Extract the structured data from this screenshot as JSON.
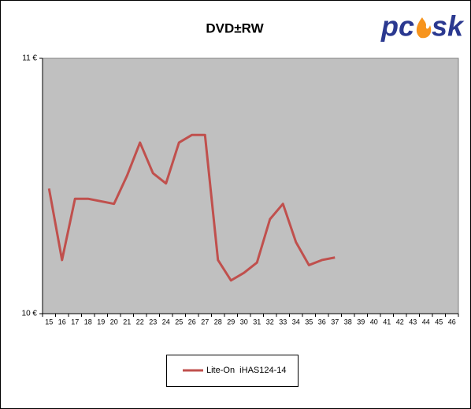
{
  "chart_data": {
    "type": "line",
    "title": "DVD±RW",
    "logo": [
      "pc",
      "sk"
    ],
    "categories": [
      "15",
      "16",
      "17",
      "18",
      "19",
      "20",
      "21",
      "22",
      "23",
      "24",
      "25",
      "26",
      "27",
      "28",
      "29",
      "30",
      "31",
      "32",
      "33",
      "34",
      "35",
      "36",
      "37",
      "38",
      "39",
      "40",
      "41",
      "42",
      "43",
      "44",
      "45",
      "46"
    ],
    "series": [
      {
        "name": "Lite-On  iHAS124-14",
        "color": "#c0504d",
        "values": [
          10.49,
          10.21,
          10.45,
          10.45,
          10.44,
          10.43,
          10.54,
          10.67,
          10.55,
          10.51,
          10.67,
          10.7,
          10.7,
          10.21,
          10.13,
          10.16,
          10.2,
          10.37,
          10.43,
          10.28,
          10.19,
          10.21,
          10.22,
          null,
          null,
          null,
          null,
          null,
          null,
          null,
          null,
          null
        ]
      }
    ],
    "ylim": [
      10,
      11
    ],
    "yticks": [
      {
        "value": 10,
        "label": "10 €"
      },
      {
        "value": 11,
        "label": "11 €"
      }
    ],
    "grid": false,
    "legend": "bottom"
  }
}
